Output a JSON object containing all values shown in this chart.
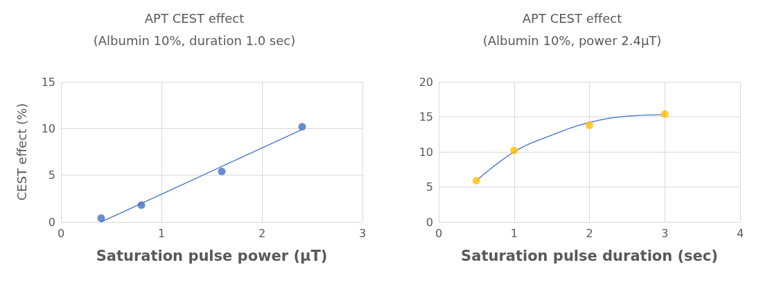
{
  "chart_data": [
    {
      "type": "scatter",
      "title": "APT CEST effect",
      "subtitle": "(Albumin 10%, duration 1.0 sec)",
      "xlabel": "Saturation pulse power (μT)",
      "ylabel": "CEST effect (%)",
      "xlim": [
        0,
        3
      ],
      "xticks": [
        0,
        1,
        2,
        3
      ],
      "ylim": [
        0,
        15
      ],
      "yticks": [
        0,
        5,
        10,
        15
      ],
      "grid": true,
      "marker": "circle",
      "series": [
        {
          "color": "#4472c4",
          "x": [
            0.4,
            0.8,
            1.6,
            2.4
          ],
          "values": [
            0.4,
            1.8,
            5.4,
            10.2
          ]
        },
        {
          "type": "line",
          "color": "#4472c4",
          "marker": "none",
          "line_style": "dotted",
          "x": [
            0.4,
            2.4
          ],
          "values": [
            0.0,
            9.9
          ]
        }
      ]
    },
    {
      "type": "scatter",
      "title": "APT CEST effect",
      "subtitle": "(Albumin 10%, power 2.4μT)",
      "xlabel": "Saturation pulse duration (sec)",
      "xlim": [
        0,
        4
      ],
      "xticks": [
        0,
        1,
        2,
        3,
        4
      ],
      "ylim": [
        0,
        20
      ],
      "yticks": [
        0,
        5,
        10,
        15,
        20
      ],
      "grid": true,
      "marker": "circle",
      "series": [
        {
          "color": "#ffc000",
          "x": [
            0.5,
            1,
            2,
            3
          ],
          "values": [
            5.9,
            10.2,
            13.8,
            15.4
          ]
        },
        {
          "type": "line",
          "color": "#4472c4",
          "marker": "none",
          "line_style": "dotted",
          "x": [
            0.5,
            1,
            1.5,
            2,
            2.5,
            3
          ],
          "values": [
            5.9,
            10.0,
            12.4,
            14.2,
            15.1,
            15.3
          ]
        }
      ]
    }
  ]
}
